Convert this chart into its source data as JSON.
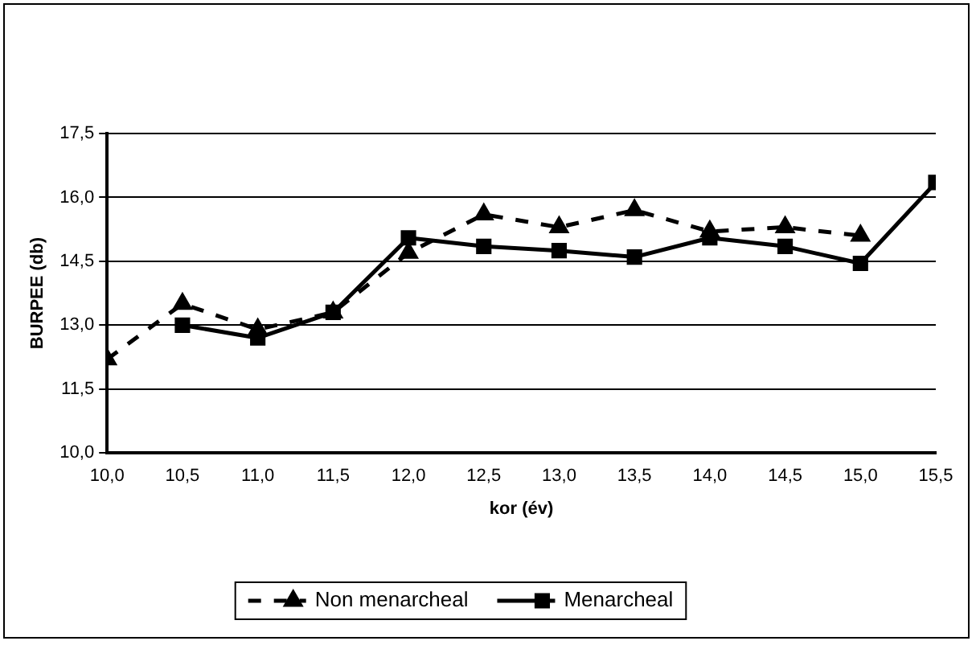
{
  "chart_data": {
    "type": "line",
    "xlabel": "kor (év)",
    "ylabel": "BURPEE (db)",
    "xlim": [
      10,
      15.5
    ],
    "xticks": [
      {
        "value": 10,
        "label": "10,0"
      },
      {
        "value": 10.5,
        "label": "10,5"
      },
      {
        "value": 11,
        "label": "11,0"
      },
      {
        "value": 11.5,
        "label": "11,5"
      },
      {
        "value": 12,
        "label": "12,0"
      },
      {
        "value": 12.5,
        "label": "12,5"
      },
      {
        "value": 13,
        "label": "13,0"
      },
      {
        "value": 13.5,
        "label": "13,5"
      },
      {
        "value": 14,
        "label": "14,0"
      },
      {
        "value": 14.5,
        "label": "14,5"
      },
      {
        "value": 15,
        "label": "15,0"
      },
      {
        "value": 15.5,
        "label": "15,5"
      }
    ],
    "ylim": [
      10,
      17.5
    ],
    "yticks": [
      {
        "value": 10,
        "label": "10,0"
      },
      {
        "value": 11.5,
        "label": "11,5"
      },
      {
        "value": 13,
        "label": "13,0"
      },
      {
        "value": 14.5,
        "label": "14,5"
      },
      {
        "value": 16,
        "label": "16,0"
      },
      {
        "value": 17.5,
        "label": "17,5"
      }
    ],
    "grid": "y",
    "legend": "bottom",
    "series": [
      {
        "name": "Non menarcheal",
        "color": "#000000",
        "marker": "triangle",
        "line_style": "dashed",
        "x": [
          10,
          10.5,
          11,
          11.5,
          12,
          12.5,
          13,
          13.5,
          14,
          14.5,
          15
        ],
        "values": [
          12.2,
          13.5,
          12.9,
          13.3,
          14.7,
          15.6,
          15.3,
          15.7,
          15.2,
          15.3,
          15.1
        ]
      },
      {
        "name": "Menarcheal",
        "color": "#000000",
        "marker": "square",
        "line_style": "solid",
        "x": [
          10.5,
          11,
          11.5,
          12,
          12.5,
          13,
          13.5,
          14,
          14.5,
          15,
          15.5
        ],
        "values": [
          13.0,
          12.7,
          13.3,
          15.05,
          14.85,
          14.75,
          14.6,
          15.05,
          14.85,
          14.45,
          16.35
        ]
      }
    ]
  }
}
